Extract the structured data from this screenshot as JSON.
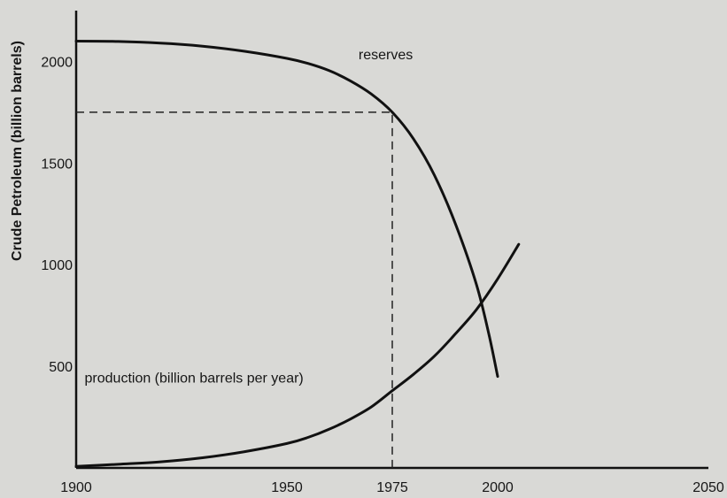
{
  "chart_data": {
    "type": "line",
    "title": "",
    "xlabel": "",
    "ylabel": "Crude Petroleum (billion barrels)",
    "xlim": [
      1900,
      2050
    ],
    "ylim": [
      0,
      2250
    ],
    "x_ticks": [
      1900,
      1950,
      1975,
      2000,
      2050
    ],
    "y_ticks": [
      500,
      1000,
      1500,
      2000
    ],
    "grid": false,
    "legend": "none",
    "series": [
      {
        "name": "reserves",
        "x": [
          1900,
          1910,
          1920,
          1930,
          1940,
          1950,
          1955,
          1960,
          1965,
          1970,
          1975,
          1980,
          1985,
          1990,
          1995,
          1998,
          2000
        ],
        "y": [
          2100,
          2098,
          2090,
          2075,
          2050,
          2015,
          1990,
          1955,
          1905,
          1840,
          1750,
          1620,
          1440,
          1200,
          900,
          650,
          450
        ]
      },
      {
        "name": "production (billion barrels per year)",
        "x": [
          1900,
          1910,
          1920,
          1930,
          1940,
          1950,
          1955,
          1960,
          1965,
          1970,
          1975,
          1980,
          1985,
          1990,
          1995,
          2000,
          2005
        ],
        "y": [
          8,
          18,
          30,
          50,
          80,
          120,
          150,
          190,
          240,
          300,
          380,
          460,
          550,
          660,
          780,
          930,
          1100
        ]
      }
    ],
    "annotations": [
      {
        "text": "reserves",
        "x": 1967,
        "y": 2010
      },
      {
        "text": "production (billion barrels per year)",
        "x": 1902,
        "y": 420
      }
    ],
    "reference_point": {
      "x": 1975,
      "y": 1750
    }
  }
}
